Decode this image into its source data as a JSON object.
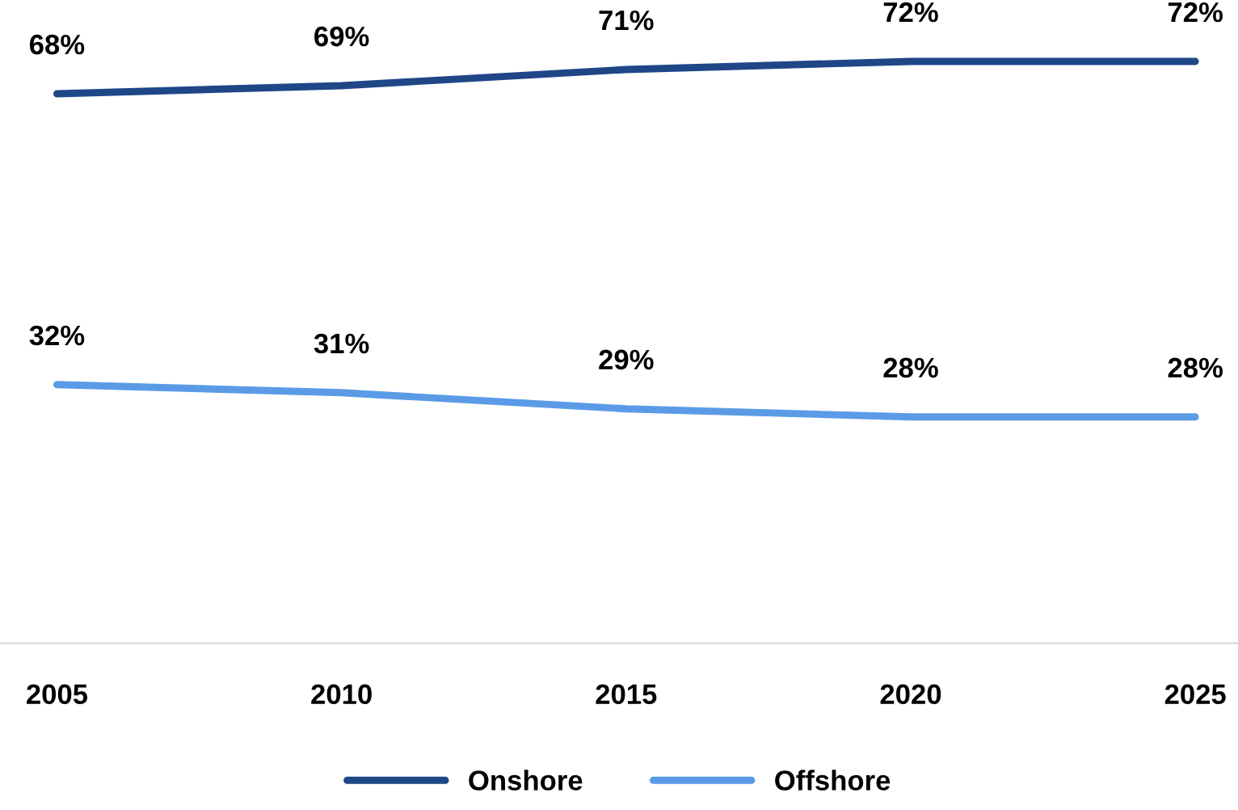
{
  "chart_data": {
    "type": "line",
    "categories": [
      "2005",
      "2010",
      "2015",
      "2020",
      "2025"
    ],
    "series": [
      {
        "name": "Onshore",
        "color": "#1f4788",
        "values": [
          68,
          69,
          71,
          72,
          72
        ],
        "value_labels": [
          "68%",
          "69%",
          "71%",
          "72%",
          "72%"
        ]
      },
      {
        "name": "Offshore",
        "color": "#5b9be6",
        "values": [
          32,
          31,
          29,
          28,
          28
        ],
        "value_labels": [
          "32%",
          "31%",
          "29%",
          "28%",
          "28%"
        ]
      }
    ],
    "tick_labels": "x",
    "grid": false,
    "legend": "bottom",
    "marker": "none",
    "line_style": "solid"
  }
}
